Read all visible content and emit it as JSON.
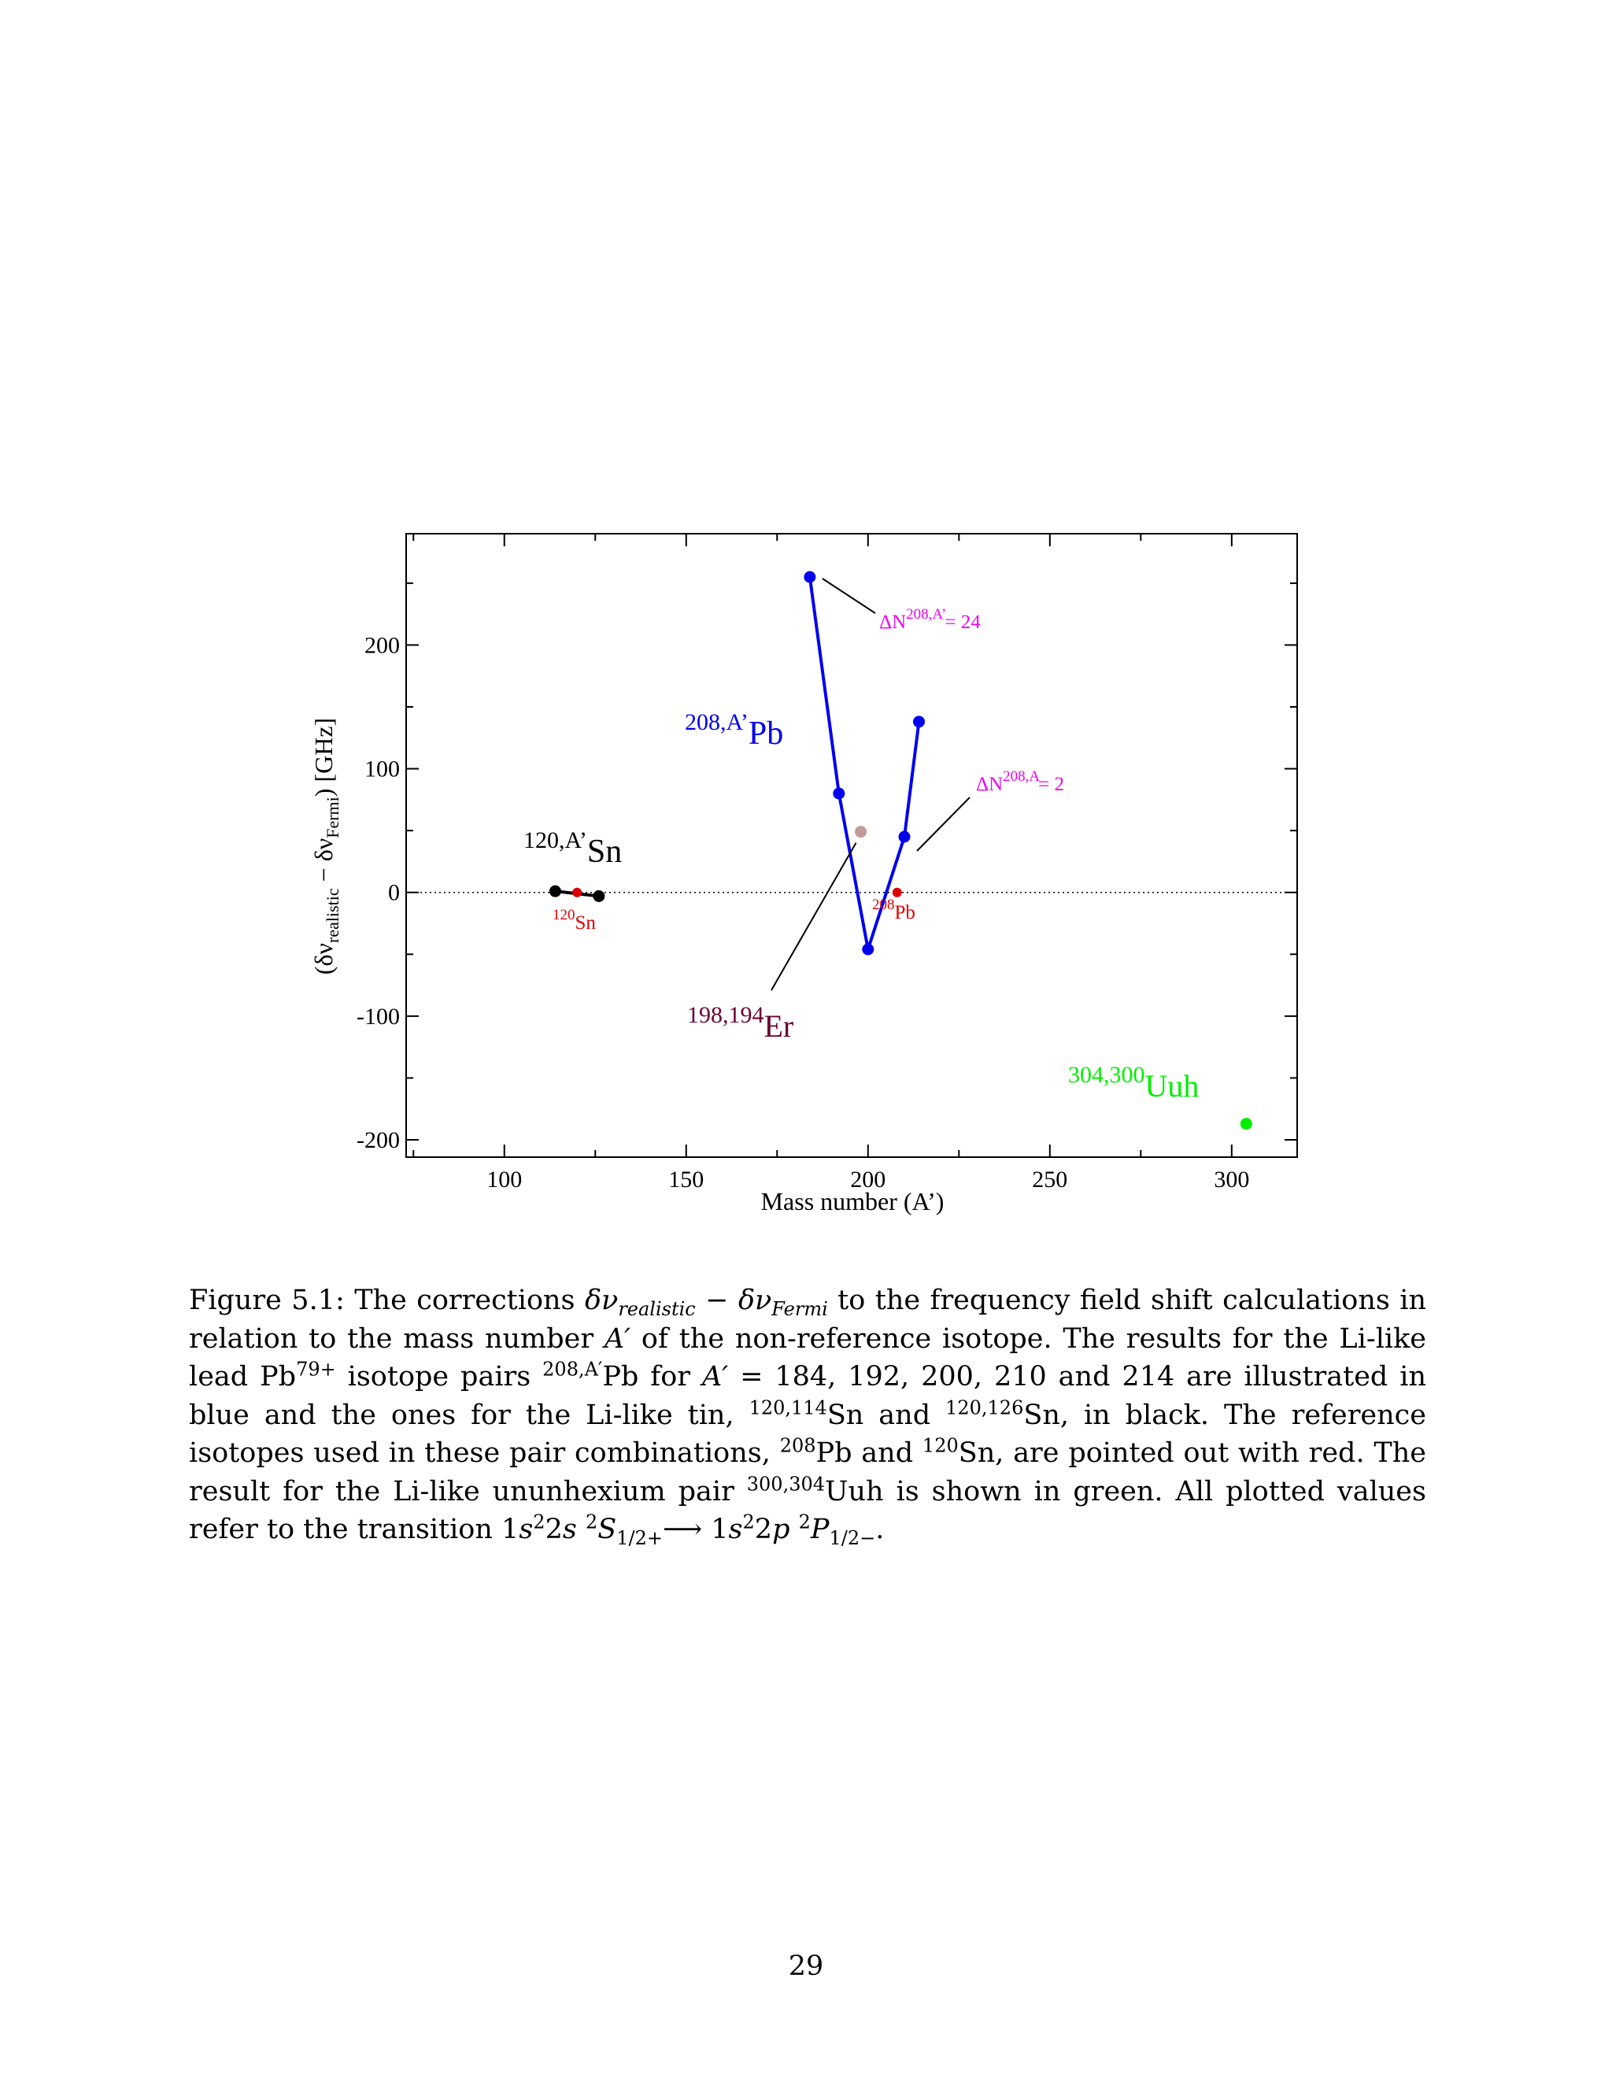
{
  "chart_data": {
    "type": "scatter",
    "xlabel": "Mass number (A’)",
    "ylabel": {
      "prefix": "(δν",
      "sub1": "realistic",
      "mid": " − δν",
      "sub2": "Fermi",
      "suffix": ")  [GHz]"
    },
    "xlim": [
      73,
      318
    ],
    "ylim": [
      -214,
      290
    ],
    "x_ticks": [
      100,
      150,
      200,
      250,
      300
    ],
    "y_ticks": [
      -200,
      -100,
      0,
      100,
      200
    ],
    "x_tick_labels": [
      "100",
      "150",
      "200",
      "250",
      "300"
    ],
    "y_tick_labels": [
      "-200",
      "-100",
      "0",
      "100",
      "200"
    ],
    "grid": false,
    "zero_line": "dotted",
    "series": [
      {
        "color": "#0000ee",
        "connected": true,
        "x": [
          184,
          192,
          200,
          210,
          214
        ],
        "y": [
          255,
          80,
          -46,
          45,
          138
        ]
      },
      {
        "color": "#000000",
        "connected": true,
        "x": [
          114,
          126
        ],
        "y": [
          1,
          -3
        ]
      },
      {
        "color": "#dd0000",
        "connected": false,
        "x": [
          120,
          208
        ],
        "y": [
          0,
          0
        ]
      },
      {
        "color": "#c49a9a",
        "connected": false,
        "x": [
          198
        ],
        "y": [
          49
        ]
      },
      {
        "color": "#00ee00",
        "connected": false,
        "x": [
          304
        ],
        "y": [
          -187
        ]
      }
    ],
    "annotations": {
      "pb_label": {
        "sup": "208,A’",
        "main": "Pb",
        "color": "#0000ee"
      },
      "sn_label": {
        "sup": "120,A’",
        "main": "Sn",
        "color": "#000000"
      },
      "sn_ref_label": {
        "sup": "120",
        "main": "Sn",
        "color": "#dd0000"
      },
      "pb_ref_label": {
        "sup": "208",
        "main": "Pb",
        "color": "#dd0000"
      },
      "er_label": {
        "sup": "198,194",
        "main": "Er",
        "color": "#6b0033"
      },
      "uuh_label": {
        "sup": "304,300",
        "main": "Uuh",
        "color": "#00ee00"
      },
      "dn24_label": {
        "main": "ΔN",
        "sup": "208,A’",
        "tail": "= 24",
        "color": "#ee00ee"
      },
      "dn2_label": {
        "main": "ΔN",
        "sup": "208,A",
        "tail": "= 2",
        "color": "#ee00ee"
      }
    }
  },
  "caption": {
    "figure_label": "Figure 5.1:",
    "text_1": " The corrections ",
    "delta_nu": "δν",
    "sub_realistic": "realistic",
    "minus": " − ",
    "sub_fermi": "Fermi",
    "text_2": " to the frequency field shift calculations in relation to the mass number ",
    "a_prime": "A′",
    "text_3": " of the non-reference isotope. The results for the Li-like lead Pb",
    "pb_charge": "79+",
    "text_4": " isotope pairs ",
    "pair_sup": "208,A′",
    "text_5": "Pb for ",
    "a_prime_2": "A′",
    "text_6": " = 184, 192, 200, 210 and 214 are illustrated in blue and the ones for the Li-like tin, ",
    "sn_sup_1": "120,114",
    "text_7": "Sn and ",
    "sn_sup_2": "120,126",
    "text_8": "Sn, in black. The reference isotopes used in these pair combinations, ",
    "pb_ref_sup": "208",
    "text_9": "Pb and ",
    "sn_ref_sup": "120",
    "text_10": "Sn, are pointed out with red. The result for the Li-like ununhexium pair ",
    "uuh_sup": "300,304",
    "text_11": "Uuh is shown in green. All plotted values refer to the transition 1",
    "s1": "s",
    "two_1": "2",
    "text_12": "2",
    "s2": "s",
    "term1_sup": "2",
    "term1_S": "S",
    "term1_sub": "1/2+",
    "arrow": "⟶",
    "text_13": " 1",
    "s3": "s",
    "two_2": "2",
    "text_14": "2",
    "p1": "p",
    "term2_sup": "2",
    "term2_P": "P",
    "term2_sub": "1/2−",
    "text_15": "."
  },
  "page_number": "29"
}
